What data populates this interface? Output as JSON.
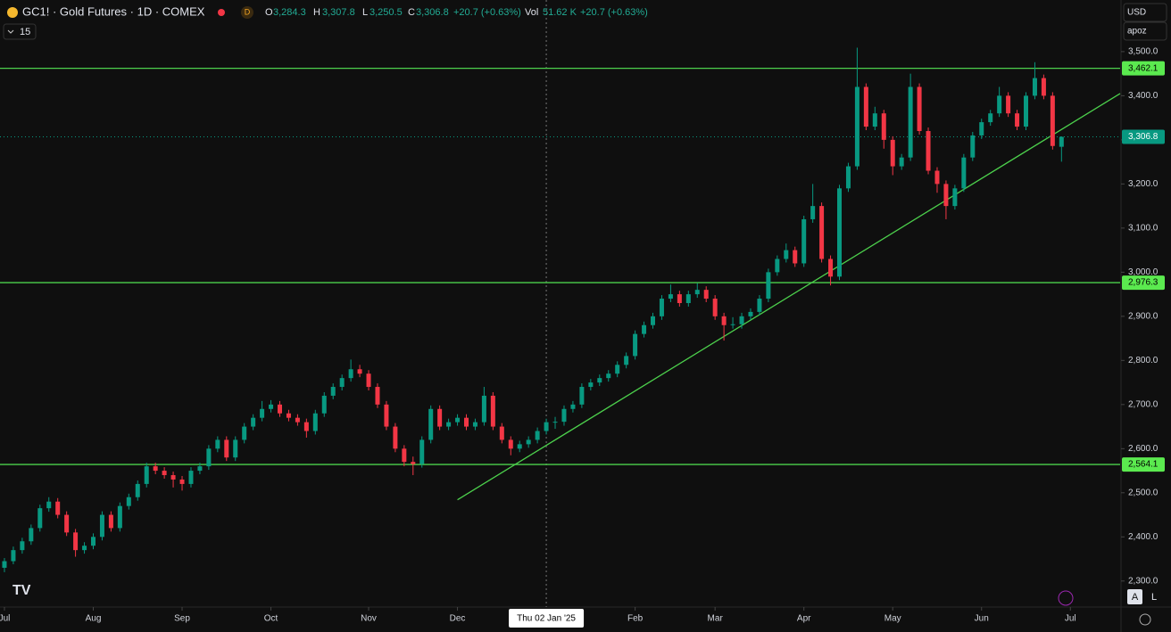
{
  "header": {
    "symbol": "GC1! · Gold Futures · 1D · COMEX",
    "badge": "D",
    "o_label": "O",
    "open": "3,284.3",
    "h_label": "H",
    "high": "3,307.8",
    "l_label": "L",
    "low": "3,250.5",
    "c_label": "C",
    "close": "3,306.8",
    "change": "+20.7 (+0.63%)",
    "vol_label": "Vol",
    "volume": "51.62 K",
    "vol_change": "+20.7 (+0.63%)",
    "interval": "15",
    "currency": "USD",
    "scale_mode": "apoz",
    "auto": "A",
    "log": "L"
  },
  "chart_data": {
    "type": "candlestick",
    "grid": false,
    "up_color": "#089981",
    "down_color": "#f23645",
    "line_color": "#4cd04c",
    "xlim": [
      -0.5,
      125.6
    ],
    "ylim": [
      2243,
      3617
    ],
    "yticks": [
      {
        "value": 2300,
        "label": "2,300.0"
      },
      {
        "value": 2400,
        "label": "2,400.0"
      },
      {
        "value": 2500,
        "label": "2,500.0"
      },
      {
        "value": 2600,
        "label": "2,600.0"
      },
      {
        "value": 2700,
        "label": "2,700.0"
      },
      {
        "value": 2800,
        "label": "2,800.0"
      },
      {
        "value": 2900,
        "label": "2,900.0"
      },
      {
        "value": 3000,
        "label": "3,000.0"
      },
      {
        "value": 3100,
        "label": "3,100.0"
      },
      {
        "value": 3200,
        "label": "3,200.0"
      },
      {
        "value": 3300,
        "label": "3,300.0"
      },
      {
        "value": 3400,
        "label": "3,400.0"
      },
      {
        "value": 3500,
        "label": "3,500.0"
      }
    ],
    "xticks": [
      {
        "value": 0,
        "label": "Jul"
      },
      {
        "value": 10,
        "label": "Aug"
      },
      {
        "value": 20,
        "label": "Sep"
      },
      {
        "value": 30,
        "label": "Oct"
      },
      {
        "value": 41,
        "label": "Nov"
      },
      {
        "value": 51,
        "label": "Dec"
      },
      {
        "value": 71,
        "label": "Feb"
      },
      {
        "value": 80,
        "label": "Mar"
      },
      {
        "value": 90,
        "label": "Apr"
      },
      {
        "value": 100,
        "label": "May"
      },
      {
        "value": 110,
        "label": "Jun"
      },
      {
        "value": 120,
        "label": "Jul"
      }
    ],
    "crosshair": {
      "x": 61,
      "label": "Thu 02 Jan '25"
    },
    "levels": [
      {
        "value": 3462.1,
        "label": "3,462.1"
      },
      {
        "value": 2976.3,
        "label": "2,976.3"
      },
      {
        "value": 2564.1,
        "label": "2,564.1"
      }
    ],
    "last_price": {
      "value": 3306.8,
      "label": "3,306.8"
    },
    "trendline": [
      [
        51,
        2484
      ],
      [
        125.6,
        3405
      ]
    ],
    "candles": [
      [
        2330,
        2352,
        2320,
        2345
      ],
      [
        2345,
        2378,
        2338,
        2370
      ],
      [
        2370,
        2398,
        2362,
        2390
      ],
      [
        2390,
        2428,
        2382,
        2420
      ],
      [
        2420,
        2473,
        2412,
        2465
      ],
      [
        2465,
        2490,
        2457,
        2480
      ],
      [
        2480,
        2488,
        2442,
        2450
      ],
      [
        2450,
        2458,
        2402,
        2410
      ],
      [
        2410,
        2418,
        2355,
        2370
      ],
      [
        2370,
        2388,
        2362,
        2380
      ],
      [
        2380,
        2408,
        2372,
        2400
      ],
      [
        2400,
        2458,
        2392,
        2450
      ],
      [
        2450,
        2458,
        2412,
        2420
      ],
      [
        2420,
        2478,
        2412,
        2470
      ],
      [
        2470,
        2498,
        2462,
        2490
      ],
      [
        2490,
        2528,
        2482,
        2520
      ],
      [
        2520,
        2568,
        2512,
        2560
      ],
      [
        2560,
        2568,
        2542,
        2550
      ],
      [
        2550,
        2558,
        2532,
        2540
      ],
      [
        2540,
        2548,
        2512,
        2530
      ],
      [
        2530,
        2538,
        2505,
        2520
      ],
      [
        2520,
        2558,
        2512,
        2550
      ],
      [
        2550,
        2568,
        2542,
        2560
      ],
      [
        2560,
        2608,
        2552,
        2600
      ],
      [
        2600,
        2628,
        2592,
        2620
      ],
      [
        2620,
        2628,
        2572,
        2580
      ],
      [
        2580,
        2628,
        2572,
        2620
      ],
      [
        2620,
        2658,
        2612,
        2650
      ],
      [
        2650,
        2678,
        2642,
        2670
      ],
      [
        2670,
        2708,
        2662,
        2690
      ],
      [
        2690,
        2710,
        2682,
        2700
      ],
      [
        2700,
        2708,
        2672,
        2680
      ],
      [
        2680,
        2688,
        2662,
        2670
      ],
      [
        2670,
        2678,
        2652,
        2660
      ],
      [
        2660,
        2668,
        2625,
        2640
      ],
      [
        2640,
        2688,
        2632,
        2680
      ],
      [
        2680,
        2728,
        2672,
        2720
      ],
      [
        2720,
        2748,
        2712,
        2740
      ],
      [
        2740,
        2768,
        2732,
        2760
      ],
      [
        2760,
        2802,
        2752,
        2780
      ],
      [
        2780,
        2790,
        2762,
        2770
      ],
      [
        2770,
        2778,
        2732,
        2740
      ],
      [
        2740,
        2748,
        2692,
        2700
      ],
      [
        2700,
        2708,
        2642,
        2650
      ],
      [
        2650,
        2658,
        2592,
        2600
      ],
      [
        2600,
        2608,
        2560,
        2570
      ],
      [
        2570,
        2582,
        2540,
        2565
      ],
      [
        2565,
        2628,
        2557,
        2620
      ],
      [
        2620,
        2698,
        2612,
        2690
      ],
      [
        2690,
        2698,
        2642,
        2650
      ],
      [
        2650,
        2668,
        2642,
        2660
      ],
      [
        2660,
        2678,
        2652,
        2670
      ],
      [
        2670,
        2678,
        2642,
        2650
      ],
      [
        2650,
        2668,
        2642,
        2660
      ],
      [
        2660,
        2740,
        2652,
        2720
      ],
      [
        2720,
        2728,
        2642,
        2650
      ],
      [
        2650,
        2658,
        2612,
        2620
      ],
      [
        2620,
        2628,
        2585,
        2600
      ],
      [
        2600,
        2618,
        2592,
        2610
      ],
      [
        2610,
        2628,
        2602,
        2620
      ],
      [
        2620,
        2648,
        2612,
        2640
      ],
      [
        2640,
        2668,
        2632,
        2660
      ],
      [
        2660,
        2672,
        2645,
        2661
      ],
      [
        2661,
        2698,
        2652,
        2690
      ],
      [
        2690,
        2708,
        2682,
        2700
      ],
      [
        2700,
        2748,
        2692,
        2740
      ],
      [
        2740,
        2758,
        2732,
        2750
      ],
      [
        2750,
        2768,
        2742,
        2760
      ],
      [
        2760,
        2778,
        2752,
        2770
      ],
      [
        2770,
        2798,
        2762,
        2790
      ],
      [
        2790,
        2818,
        2782,
        2810
      ],
      [
        2810,
        2868,
        2802,
        2860
      ],
      [
        2860,
        2888,
        2852,
        2880
      ],
      [
        2880,
        2908,
        2872,
        2900
      ],
      [
        2900,
        2948,
        2892,
        2940
      ],
      [
        2940,
        2972,
        2932,
        2950
      ],
      [
        2950,
        2958,
        2922,
        2930
      ],
      [
        2930,
        2958,
        2922,
        2950
      ],
      [
        2950,
        2975,
        2942,
        2960
      ],
      [
        2960,
        2968,
        2932,
        2940
      ],
      [
        2940,
        2948,
        2892,
        2900
      ],
      [
        2900,
        2908,
        2845,
        2880
      ],
      [
        2880,
        2898,
        2872,
        2882
      ],
      [
        2882,
        2908,
        2872,
        2900
      ],
      [
        2900,
        2918,
        2892,
        2910
      ],
      [
        2910,
        2948,
        2902,
        2940
      ],
      [
        2940,
        3008,
        2932,
        3000
      ],
      [
        3000,
        3038,
        2992,
        3030
      ],
      [
        3030,
        3065,
        3022,
        3050
      ],
      [
        3050,
        3058,
        3012,
        3020
      ],
      [
        3020,
        3128,
        3012,
        3120
      ],
      [
        3120,
        3200,
        3112,
        3150
      ],
      [
        3150,
        3158,
        3022,
        3030
      ],
      [
        3030,
        3038,
        2970,
        2990
      ],
      [
        2990,
        3198,
        2982,
        3190
      ],
      [
        3190,
        3248,
        3182,
        3240
      ],
      [
        3240,
        3509,
        3232,
        3420
      ],
      [
        3420,
        3428,
        3322,
        3330
      ],
      [
        3330,
        3375,
        3322,
        3360
      ],
      [
        3360,
        3368,
        3280,
        3300
      ],
      [
        3300,
        3308,
        3220,
        3240
      ],
      [
        3240,
        3268,
        3232,
        3260
      ],
      [
        3260,
        3450,
        3252,
        3420
      ],
      [
        3420,
        3428,
        3312,
        3320
      ],
      [
        3320,
        3328,
        3222,
        3230
      ],
      [
        3230,
        3238,
        3180,
        3200
      ],
      [
        3200,
        3208,
        3120,
        3150
      ],
      [
        3150,
        3198,
        3142,
        3190
      ],
      [
        3190,
        3268,
        3182,
        3260
      ],
      [
        3260,
        3318,
        3252,
        3310
      ],
      [
        3310,
        3348,
        3302,
        3340
      ],
      [
        3340,
        3368,
        3332,
        3360
      ],
      [
        3360,
        3420,
        3352,
        3400
      ],
      [
        3400,
        3408,
        3352,
        3360
      ],
      [
        3360,
        3368,
        3322,
        3330
      ],
      [
        3330,
        3408,
        3322,
        3400
      ],
      [
        3400,
        3476,
        3392,
        3440
      ],
      [
        3440,
        3448,
        3392,
        3400
      ],
      [
        3400,
        3408,
        3278,
        3286.1
      ],
      [
        3284.3,
        3307.8,
        3250.5,
        3306.8
      ]
    ]
  }
}
